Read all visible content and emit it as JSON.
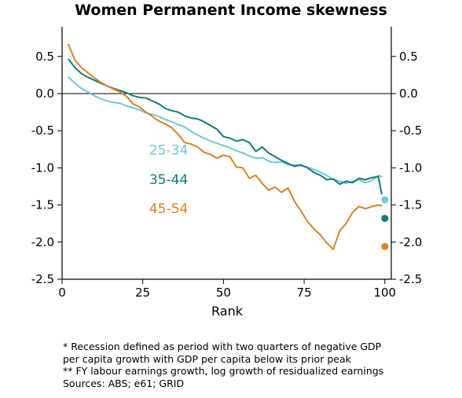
{
  "chart_data": {
    "type": "line",
    "title": "Women Permanent Income skewness",
    "xlabel": "Rank",
    "ylabel": "",
    "xlim": [
      0,
      102
    ],
    "ylim": [
      -2.5,
      0.9
    ],
    "xticks": [
      "0",
      "25",
      "50",
      "75",
      "100"
    ],
    "yticks": [
      "0.5",
      "0.0",
      "-0.5",
      "-1.0",
      "-1.5",
      "-2.0",
      "-2.5"
    ],
    "zero_line": true,
    "grid": false,
    "series": [
      {
        "name": "25-34",
        "color": "#6ccad6",
        "x": [
          2,
          4,
          6,
          8,
          10,
          12,
          14,
          16,
          18,
          20,
          22,
          24,
          26,
          28,
          30,
          32,
          34,
          36,
          38,
          40,
          42,
          44,
          46,
          48,
          50,
          52,
          54,
          56,
          58,
          60,
          62,
          64,
          66,
          68,
          70,
          72,
          74,
          76,
          78,
          80,
          82,
          84,
          86,
          88,
          90,
          92,
          94,
          96,
          98,
          99
        ],
        "y": [
          0.22,
          0.14,
          0.07,
          0.02,
          -0.03,
          -0.07,
          -0.1,
          -0.12,
          -0.13,
          -0.17,
          -0.19,
          -0.22,
          -0.26,
          -0.28,
          -0.31,
          -0.35,
          -0.38,
          -0.42,
          -0.45,
          -0.51,
          -0.56,
          -0.6,
          -0.64,
          -0.67,
          -0.7,
          -0.73,
          -0.77,
          -0.8,
          -0.84,
          -0.87,
          -0.86,
          -0.91,
          -0.93,
          -0.92,
          -0.96,
          -0.96,
          -0.97,
          -0.99,
          -1.02,
          -1.06,
          -1.1,
          -1.16,
          -1.18,
          -1.21,
          -1.18,
          -1.16,
          -1.2,
          -1.17,
          -1.1,
          -1.12
        ],
        "endpoint": {
          "x": 100,
          "y": -1.43
        }
      },
      {
        "name": "35-44",
        "color": "#127b7c",
        "x": [
          2,
          4,
          6,
          8,
          10,
          12,
          14,
          16,
          18,
          20,
          22,
          24,
          26,
          28,
          30,
          32,
          34,
          36,
          38,
          40,
          42,
          44,
          46,
          48,
          50,
          52,
          54,
          56,
          58,
          60,
          62,
          64,
          66,
          68,
          70,
          72,
          74,
          76,
          78,
          80,
          82,
          84,
          86,
          88,
          90,
          92,
          94,
          96,
          98,
          99
        ],
        "y": [
          0.46,
          0.35,
          0.27,
          0.22,
          0.18,
          0.14,
          0.1,
          0.07,
          0.04,
          0.01,
          -0.03,
          -0.05,
          -0.06,
          -0.1,
          -0.14,
          -0.2,
          -0.23,
          -0.25,
          -0.3,
          -0.33,
          -0.34,
          -0.38,
          -0.43,
          -0.48,
          -0.58,
          -0.6,
          -0.64,
          -0.62,
          -0.66,
          -0.78,
          -0.72,
          -0.8,
          -0.85,
          -0.9,
          -0.94,
          -0.98,
          -0.96,
          -1.0,
          -1.06,
          -1.1,
          -1.16,
          -1.15,
          -1.22,
          -1.18,
          -1.2,
          -1.14,
          -1.16,
          -1.13,
          -1.12,
          -1.35
        ],
        "endpoint": {
          "x": 100,
          "y": -1.68
        }
      },
      {
        "name": "45-54",
        "color": "#e0801e",
        "x": [
          2,
          4,
          6,
          8,
          10,
          12,
          14,
          16,
          18,
          20,
          22,
          24,
          26,
          28,
          30,
          32,
          34,
          36,
          38,
          40,
          42,
          44,
          46,
          48,
          50,
          52,
          54,
          56,
          58,
          60,
          62,
          64,
          66,
          68,
          70,
          72,
          74,
          76,
          78,
          80,
          82,
          84,
          86,
          88,
          90,
          92,
          94,
          96,
          98,
          99
        ],
        "y": [
          0.66,
          0.45,
          0.35,
          0.28,
          0.21,
          0.15,
          0.1,
          0.06,
          0.02,
          -0.04,
          -0.14,
          -0.18,
          -0.25,
          -0.31,
          -0.37,
          -0.41,
          -0.46,
          -0.55,
          -0.66,
          -0.68,
          -0.72,
          -0.79,
          -0.82,
          -0.87,
          -0.83,
          -0.85,
          -0.99,
          -1.0,
          -1.14,
          -1.1,
          -1.21,
          -1.3,
          -1.26,
          -1.33,
          -1.27,
          -1.45,
          -1.58,
          -1.72,
          -1.82,
          -1.9,
          -2.01,
          -2.1,
          -1.85,
          -1.75,
          -1.6,
          -1.52,
          -1.55,
          -1.52,
          -1.5,
          -1.51
        ],
        "endpoint": {
          "x": 100,
          "y": -2.06
        }
      }
    ],
    "labels": [
      {
        "text": "25-34",
        "x": 27,
        "y": -0.82,
        "series": 0
      },
      {
        "text": "35-44",
        "x": 27,
        "y": -1.22,
        "series": 1
      },
      {
        "text": "45-54",
        "x": 27,
        "y": -1.61,
        "series": 2
      }
    ]
  },
  "notes": [
    "* Recession defined as period with two quarters of negative GDP",
    "per capita growth with GDP per capita below its prior peak",
    "** FY labour earnings growth, log growth of residualized earnings",
    "Sources: ABS; e61; GRID"
  ]
}
